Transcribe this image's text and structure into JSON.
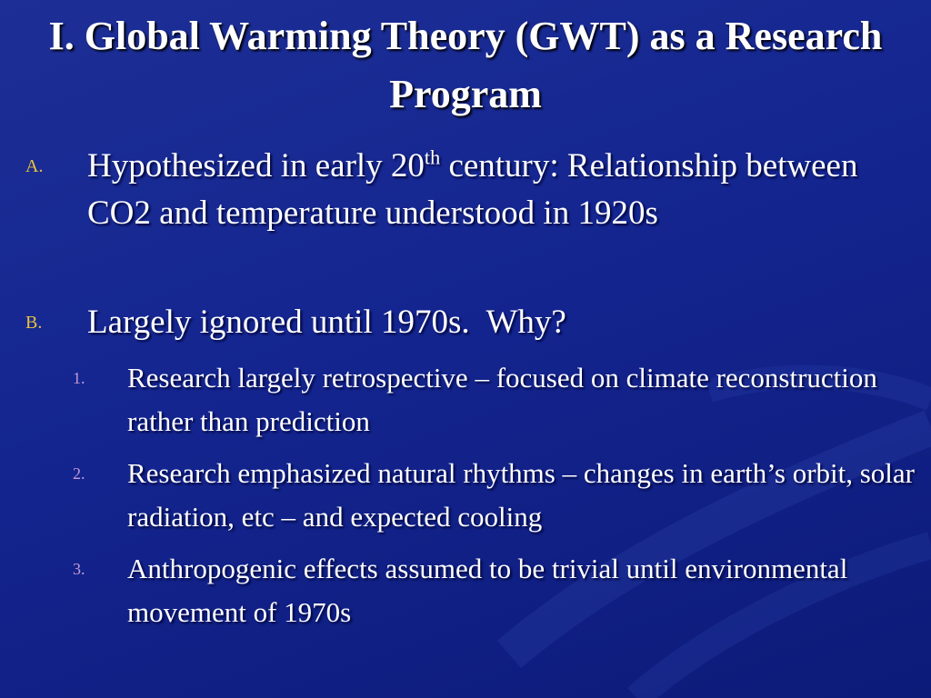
{
  "header": {
    "title": "I. Global Warming Theory (GWT) as a Research Program"
  },
  "items": [
    {
      "marker": "A.",
      "text_before": "Hypothesized in early 20",
      "superscript": "th",
      "text_after": " century: Relationship between CO2 and temperature understood in 1920s"
    },
    {
      "marker": "B.",
      "text": "Largely ignored until 1970s.  Why?",
      "subitems": [
        {
          "marker": "1.",
          "text": "Research largely retrospective – focused on climate reconstruction rather than prediction"
        },
        {
          "marker": "2.",
          "text": "Research emphasized natural rhythms – changes in earth’s orbit, solar radiation, etc – and expected cooling"
        },
        {
          "marker": "3.",
          "text": "Anthropogenic effects assumed to be trivial until environmental movement of 1970s"
        }
      ]
    }
  ]
}
